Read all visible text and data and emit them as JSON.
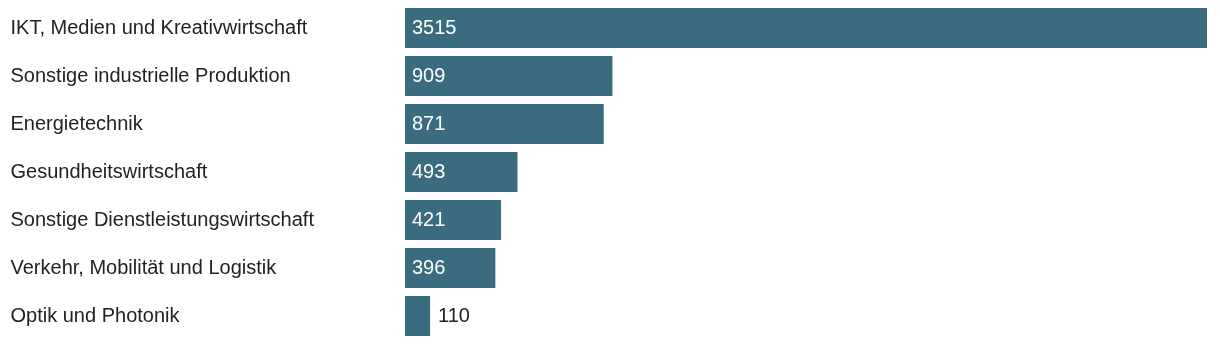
{
  "chart_data": {
    "type": "bar",
    "orientation": "horizontal",
    "categories": [
      "IKT, Medien und Kreativwirtschaft",
      "Sonstige industrielle Produktion",
      "Energietechnik",
      "Gesundheitswirtschaft",
      "Sonstige Dienstleistungswirtschaft",
      "Verkehr, Mobilität und Logistik",
      "Optik und Photonik"
    ],
    "values": [
      3515,
      909,
      871,
      493,
      421,
      396,
      110
    ],
    "color": "#3b6b7e",
    "data_labels": true
  }
}
